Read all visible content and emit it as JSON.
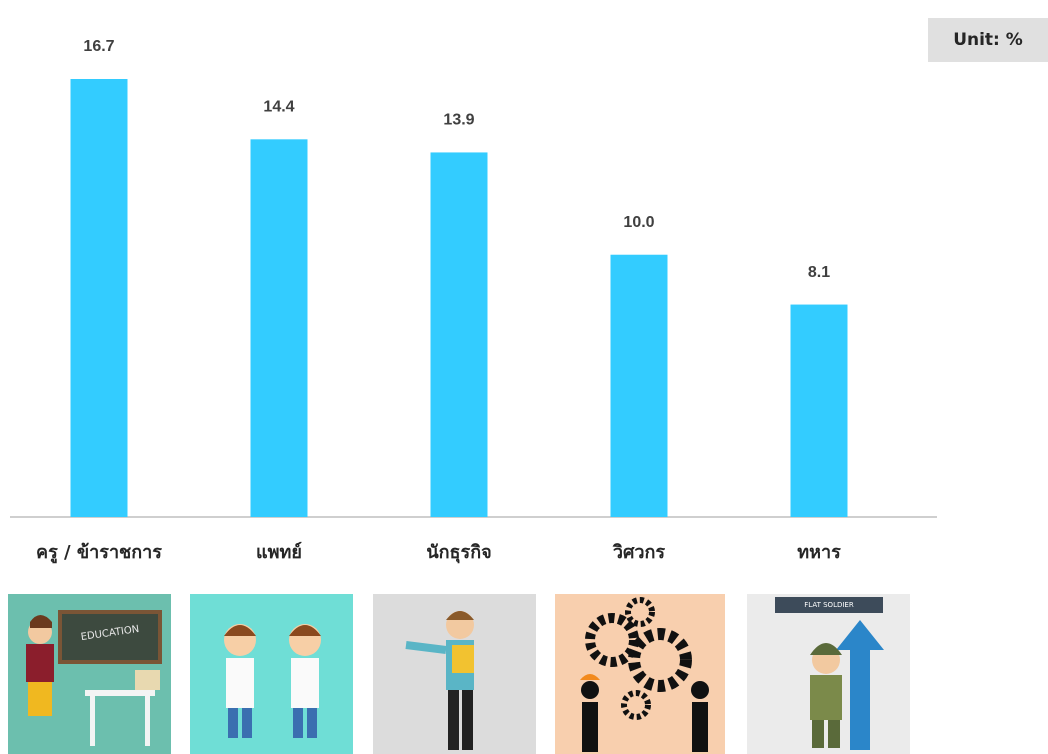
{
  "chart_data": {
    "type": "bar",
    "unit_label": "Unit: %",
    "categories": [
      "ครู / ข้าราชการ",
      "แพทย์",
      "นักธุรกิจ",
      "วิศวกร",
      "ทหาร"
    ],
    "values": [
      16.7,
      14.4,
      13.9,
      10.0,
      8.1
    ],
    "value_labels": [
      "16.7",
      "14.4",
      "13.9",
      "10.0",
      "8.1"
    ],
    "color": "#33ccff",
    "grid": false
  },
  "illustrations": {
    "education_board": "EDUCATION",
    "soldier_banner": "FLAT SOLDIER"
  }
}
